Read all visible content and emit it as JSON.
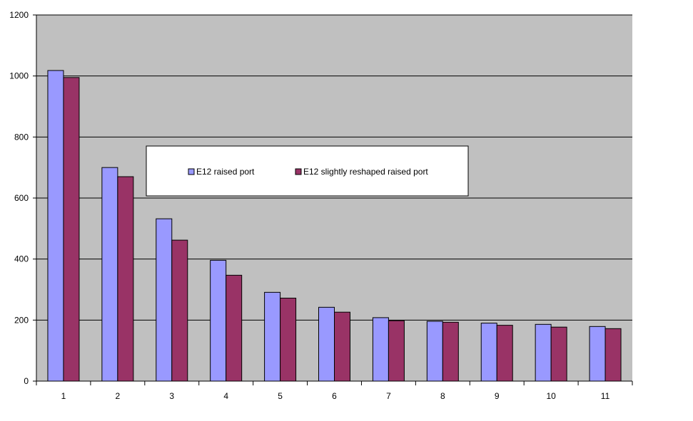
{
  "colors": {
    "plot_background": "#c0c0c0",
    "gridline": "#000000",
    "series_1": "#9999ff",
    "series_2": "#993366",
    "legend_background": "#ffffff"
  },
  "chart_data": {
    "type": "bar",
    "title": "",
    "xlabel": "",
    "ylabel": "",
    "categories": [
      "1",
      "2",
      "3",
      "4",
      "5",
      "6",
      "7",
      "8",
      "9",
      "10",
      "11"
    ],
    "series": [
      {
        "name": "E12 raised port",
        "values": [
          1018,
          700,
          532,
          396,
          291,
          242,
          208,
          196,
          190,
          186,
          179
        ]
      },
      {
        "name": "E12 slightly reshaped raised port",
        "values": [
          995,
          670,
          462,
          347,
          272,
          226,
          198,
          193,
          183,
          177,
          172
        ]
      }
    ],
    "ylim": [
      0,
      1200
    ],
    "yticks": [
      "0",
      "200",
      "400",
      "600",
      "800",
      "1000",
      "1200"
    ],
    "grid": "horizontal",
    "legend_position": "inside-upper-center"
  }
}
